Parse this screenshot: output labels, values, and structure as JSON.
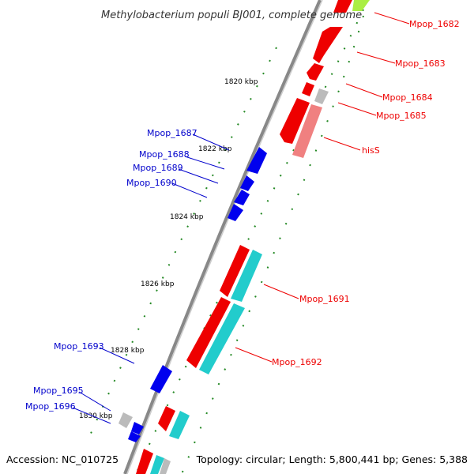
{
  "title": "Methylobacterium populi BJ001, complete genome",
  "accession": "Accession: NC_010725",
  "summary": "Topology: circular; Length: 5,800,441 bp; Genes: 5,388",
  "kbp_labels": [
    "1820 kbp",
    "1822 kbp",
    "1824 kbp",
    "1826 kbp",
    "1828 kbp",
    "1830 kbp"
  ],
  "genes_right": [
    {
      "label": "Mpop_1682",
      "color": "#ee0000"
    },
    {
      "label": "Mpop_1683",
      "color": "#ee0000"
    },
    {
      "label": "Mpop_1684",
      "color": "#ee0000"
    },
    {
      "label": "Mpop_1685",
      "color": "#ee0000"
    },
    {
      "label": "hisS",
      "color": "#ee0000"
    },
    {
      "label": "Mpop_1691",
      "color": "#ee0000"
    },
    {
      "label": "Mpop_1692",
      "color": "#ee0000"
    }
  ],
  "genes_left": [
    {
      "label": "Mpop_1687",
      "color": "#0000cc"
    },
    {
      "label": "Mpop_1688",
      "color": "#0000cc"
    },
    {
      "label": "Mpop_1689",
      "color": "#0000cc"
    },
    {
      "label": "Mpop_1690",
      "color": "#0000cc"
    },
    {
      "label": "Mpop_1693",
      "color": "#0000cc"
    },
    {
      "label": "Mpop_1695",
      "color": "#0000cc"
    },
    {
      "label": "Mpop_1696",
      "color": "#0000cc"
    }
  ],
  "colors": {
    "forward_cds": "#ee0000",
    "reverse_cds": "#0000ee",
    "rna_feature": "#22cccc",
    "other_feature": "#bbbbbb",
    "pseudo_feature": "#f08080",
    "highlight": "#aaee44",
    "backbone": "#888888",
    "tick": "#228822"
  }
}
